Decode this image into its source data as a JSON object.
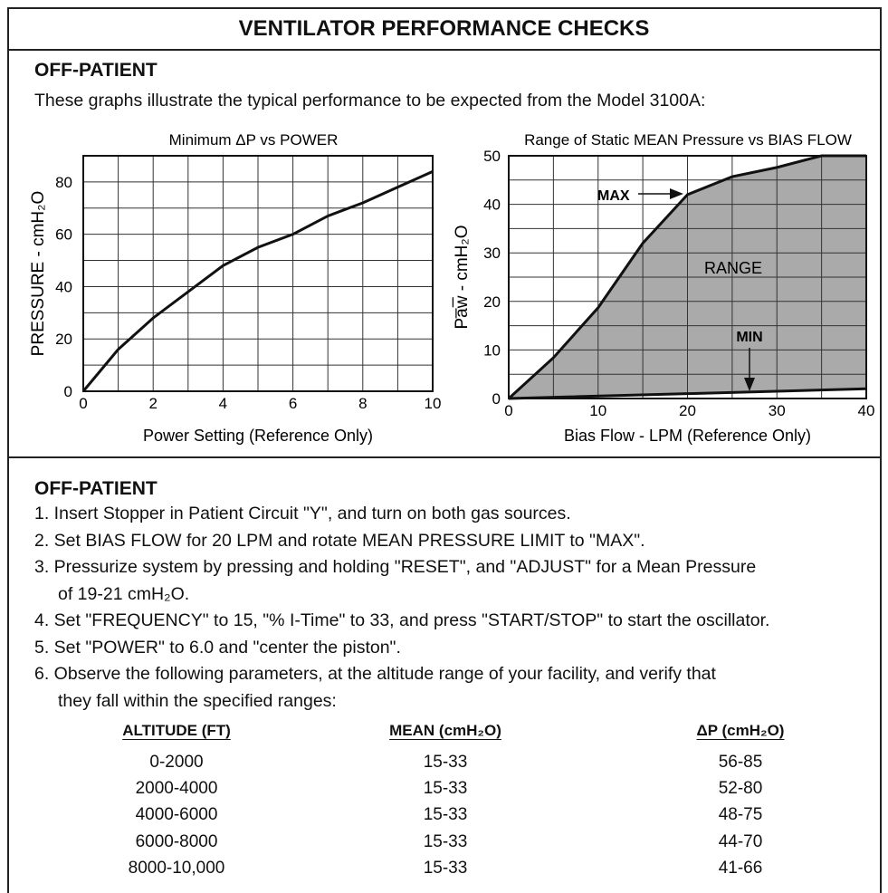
{
  "title": "VENTILATOR PERFORMANCE CHECKS",
  "section1": {
    "heading": "OFF-PATIENT",
    "text": "These graphs illustrate the typical performance to be expected from the Model 3100A:"
  },
  "chart_data": [
    {
      "type": "line",
      "title": "Minimum ΔP vs POWER",
      "x_label": "Power Setting (Reference Only)",
      "y_label": "PRESSURE - cmH₂O",
      "xlim": [
        0,
        10
      ],
      "xticks": [
        0,
        2,
        4,
        6,
        8,
        10
      ],
      "ylim": [
        0,
        90
      ],
      "yticks": [
        0,
        20,
        40,
        60,
        80
      ],
      "grid": true,
      "series": [
        {
          "name": "Minimum ΔP",
          "color": "#111111",
          "x": [
            0,
            1,
            2,
            3,
            4,
            5,
            6,
            7,
            8,
            9,
            10
          ],
          "values": [
            0,
            16,
            28,
            38,
            48,
            55,
            60,
            67,
            72,
            78,
            84
          ]
        }
      ]
    },
    {
      "type": "area",
      "title": "Range of Static MEAN Pressure vs BIAS FLOW",
      "x_label": "Bias Flow - LPM (Reference Only)",
      "y_label": "Pa̅w̅ - cmH₂O",
      "xlim": [
        0,
        40
      ],
      "xticks": [
        0,
        10,
        20,
        30,
        40
      ],
      "ylim": [
        0,
        50
      ],
      "yticks": [
        0,
        10,
        20,
        30,
        40,
        50
      ],
      "grid": true,
      "fill": "#aaaaaa",
      "annotation": "RANGE",
      "series": [
        {
          "name": "MAX",
          "color": "#111111",
          "x": [
            0,
            5,
            10,
            15,
            20,
            25,
            30,
            35,
            40
          ],
          "values": [
            0,
            8.4,
            18.7,
            32,
            42,
            45.7,
            47.6,
            50,
            50
          ]
        },
        {
          "name": "MIN",
          "color": "#111111",
          "x": [
            0,
            20,
            40
          ],
          "values": [
            0,
            1,
            2
          ]
        }
      ]
    }
  ],
  "section2": {
    "heading": "OFF-PATIENT",
    "items": [
      [
        "1. Insert Stopper in Patient Circuit \"Y\", and turn on both gas sources."
      ],
      [
        "2. Set BIAS FLOW for 20 LPM and rotate MEAN PRESSURE LIMIT to \"MAX\"."
      ],
      [
        "3. Pressurize system by pressing and holding \"RESET\", and \"ADJUST\" for a Mean Pressure",
        "of 19-21 cmH₂O."
      ],
      [
        "4. Set \"FREQUENCY\" to 15, \"% I-Time\" to 33, and press \"START/STOP\" to start the oscillator."
      ],
      [
        "5. Set \"POWER\" to 6.0 and \"center the piston\"."
      ],
      [
        "6. Observe the following parameters, at the altitude range of your facility, and verify that",
        "they fall within the specified ranges:"
      ]
    ],
    "table": {
      "headers": [
        "ALTITUDE (FT)",
        "MEAN (cmH₂O)",
        "ΔP (cmH₂O)"
      ],
      "rows": [
        [
          "0-2000",
          "15-33",
          "56-85"
        ],
        [
          "2000-4000",
          "15-33",
          "52-80"
        ],
        [
          "4000-6000",
          "15-33",
          "48-75"
        ],
        [
          "6000-8000",
          "15-33",
          "44-70"
        ],
        [
          "8000-10,000",
          "15-33",
          "41-66"
        ]
      ]
    }
  }
}
